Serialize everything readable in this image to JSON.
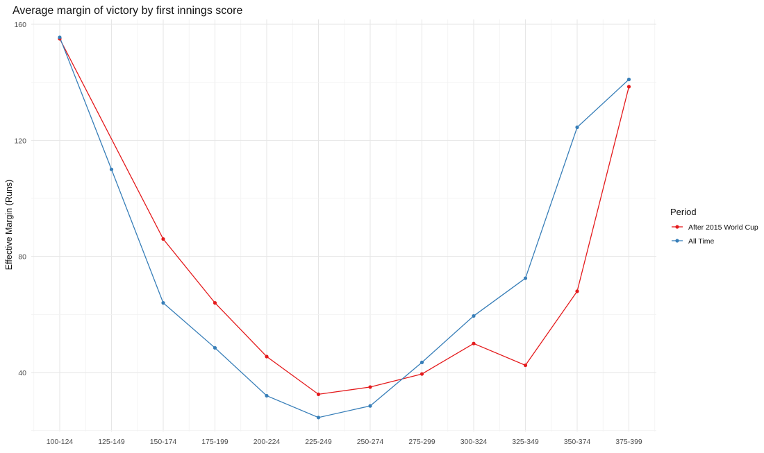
{
  "chart_data": {
    "type": "line",
    "title": "Average margin of victory by first innings score",
    "xlabel": "",
    "ylabel": "Effective Margin (Runs)",
    "categories": [
      "100-124",
      "125-149",
      "150-174",
      "175-199",
      "200-224",
      "225-249",
      "250-274",
      "275-299",
      "300-324",
      "325-349",
      "350-374",
      "375-399"
    ],
    "yticks": [
      40,
      80,
      120,
      160
    ],
    "ylim": [
      20,
      162
    ],
    "grid": true,
    "legend": {
      "title": "Period",
      "placement": "right"
    },
    "series": [
      {
        "name": "After 2015 World Cup",
        "color": "#e41a1c",
        "values": [
          155,
          null,
          86,
          64,
          45.5,
          32.5,
          35,
          39.5,
          50,
          42.5,
          68,
          138.5
        ]
      },
      {
        "name": "All Time",
        "color": "#377eb8",
        "values": [
          155.5,
          110,
          64,
          48.5,
          32,
          24.5,
          28.5,
          43.5,
          59.5,
          72.5,
          124.5,
          141
        ]
      }
    ]
  }
}
